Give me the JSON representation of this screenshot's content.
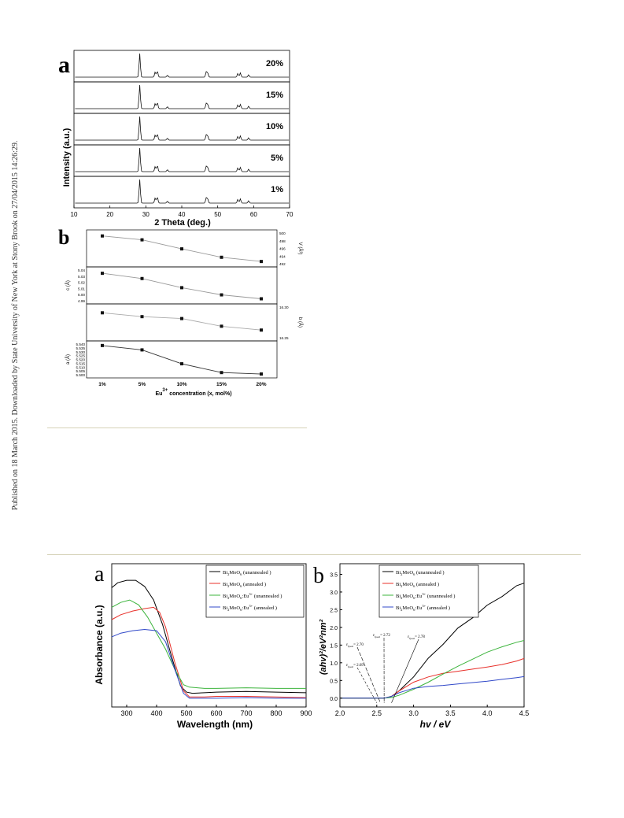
{
  "side_note": "Published on 18 March 2015. Downloaded by State University of New York at Stony Brook on 27/04/2015 14:26:29.",
  "fig_top": {
    "panel_a": {
      "letter": "a",
      "ylabel": "Intensity (a.u.)",
      "xlabel": "2 Theta (deg.)",
      "xticks": [
        "10",
        "20",
        "30",
        "40",
        "50",
        "60",
        "70"
      ],
      "xlim": [
        10,
        70
      ],
      "traces": [
        "20%",
        "15%",
        "10%",
        "5%",
        "1%"
      ],
      "peaks": [
        {
          "x": 28.3,
          "h": 1.0
        },
        {
          "x": 32.6,
          "h": 0.22
        },
        {
          "x": 33.2,
          "h": 0.26
        },
        {
          "x": 36.0,
          "h": 0.08
        },
        {
          "x": 46.8,
          "h": 0.22
        },
        {
          "x": 47.2,
          "h": 0.18
        },
        {
          "x": 55.6,
          "h": 0.16
        },
        {
          "x": 56.3,
          "h": 0.18
        },
        {
          "x": 58.6,
          "h": 0.1
        }
      ]
    },
    "panel_b": {
      "letter": "b",
      "categories": [
        "1%",
        "5%",
        "10%",
        "15%",
        "20%"
      ],
      "xlabel_pre": "Eu",
      "xlabel_sup": "3+",
      "xlabel_post": " concentration (x, mol%)",
      "subplots": [
        {
          "label": "V (Å³)",
          "side": "right",
          "ticks": [
            "500",
            "498",
            "496",
            "494",
            "492"
          ],
          "range": [
            491,
            500.5
          ],
          "values": [
            499.6,
            498.4,
            495.6,
            493.0,
            491.7
          ],
          "color": "#999999"
        },
        {
          "label": "c (Å)",
          "side": "left",
          "ticks": [
            "5.04",
            "5.03",
            "5.02",
            "5.01",
            "5.00",
            "4.99"
          ],
          "range": [
            4.993,
            5.04
          ],
          "values": [
            5.035,
            5.027,
            5.013,
            5.002,
            4.996
          ],
          "color": "#999999"
        },
        {
          "label": "b (Å)",
          "side": "right",
          "ticks": [
            "16.30",
            "16.25"
          ],
          "range": [
            16.24,
            16.32
          ],
          "values": [
            16.305,
            16.295,
            16.29,
            16.27,
            16.26
          ],
          "color": "#aaaaaa"
        },
        {
          "label": "a (Å)",
          "side": "left",
          "ticks": [
            "5.540",
            "5.535",
            "5.530",
            "5.525",
            "5.520",
            "5.515",
            "5.510",
            "5.505",
            "5.500"
          ],
          "range": [
            5.499,
            5.541
          ],
          "values": [
            5.539,
            5.533,
            5.514,
            5.502,
            5.5
          ],
          "color": "#333333"
        }
      ]
    }
  },
  "fig_bottom": {
    "panel_a": {
      "letter": "a",
      "ylabel": "Absorbance (a.u.)",
      "xlabel": "Wavelength (nm)",
      "xticks": [
        "300",
        "400",
        "500",
        "600",
        "700",
        "800",
        "900"
      ],
      "xlim": [
        250,
        900
      ],
      "legend": [
        {
          "pre": "Bi",
          "s1": "2",
          "mid": "MoO",
          "s2": "6",
          "post": "  (unannealed )",
          "color": "#000000"
        },
        {
          "pre": "Bi",
          "s1": "2",
          "mid": "MoO",
          "s2": "6",
          "post": "     (annealed )",
          "color": "#e8302a"
        },
        {
          "pre": "Bi",
          "s1": "2",
          "mid": "MoO",
          "s2": "6",
          "post": ":Eu",
          "s3": "3+",
          "post2": " (unannealed )",
          "color": "#3cb43c"
        },
        {
          "pre": "Bi",
          "s1": "2",
          "mid": "MoO",
          "s2": "6",
          "post": ":Eu",
          "s3": "3+",
          "post2": "    (annealed )",
          "color": "#3048c8"
        }
      ],
      "series": [
        {
          "x": [
            250,
            270,
            300,
            330,
            360,
            390,
            420,
            450,
            480,
            500,
            520,
            560,
            600,
            700,
            800,
            900
          ],
          "y": [
            0.92,
            0.96,
            0.98,
            0.98,
            0.93,
            0.82,
            0.62,
            0.36,
            0.12,
            0.07,
            0.06,
            0.065,
            0.07,
            0.075,
            0.07,
            0.065
          ]
        },
        {
          "x": [
            250,
            280,
            320,
            360,
            390,
            410,
            430,
            460,
            490,
            510,
            560,
            600,
            700,
            800,
            900
          ],
          "y": [
            0.66,
            0.7,
            0.73,
            0.75,
            0.76,
            0.72,
            0.6,
            0.32,
            0.08,
            0.03,
            0.03,
            0.035,
            0.035,
            0.03,
            0.025
          ]
        },
        {
          "x": [
            250,
            280,
            310,
            340,
            370,
            400,
            430,
            460,
            490,
            510,
            560,
            600,
            700,
            800,
            900
          ],
          "y": [
            0.76,
            0.8,
            0.82,
            0.78,
            0.68,
            0.55,
            0.42,
            0.26,
            0.13,
            0.11,
            0.1,
            0.1,
            0.105,
            0.1,
            0.1
          ]
        },
        {
          "x": [
            250,
            280,
            320,
            360,
            400,
            430,
            460,
            490,
            510,
            560,
            600,
            700,
            800,
            900
          ],
          "y": [
            0.52,
            0.55,
            0.57,
            0.58,
            0.57,
            0.48,
            0.26,
            0.06,
            0.02,
            0.02,
            0.02,
            0.025,
            0.02,
            0.02
          ]
        }
      ]
    },
    "panel_b": {
      "letter": "b",
      "ylabel": "(ahv)²/eV²nm²",
      "xlabel": "hv / eV",
      "xticks": [
        "2.0",
        "2.5",
        "3.0",
        "3.5",
        "4.0",
        "4.5"
      ],
      "yticks": [
        "0.0",
        "0.5",
        "1.0",
        "1.5",
        "2.0",
        "2.5",
        "3.0",
        "3.5"
      ],
      "xlim": [
        2.0,
        4.5
      ],
      "ylim": [
        -0.25,
        3.8
      ],
      "legend": [
        {
          "pre": "Bi",
          "s1": "2",
          "mid": "MoO",
          "s2": "6",
          "post": "  (unannealed )",
          "color": "#000000"
        },
        {
          "pre": "Bi",
          "s1": "2",
          "mid": "MoO",
          "s2": "6",
          "post": "     (annealed )",
          "color": "#e8302a"
        },
        {
          "pre": "Bi",
          "s1": "2",
          "mid": "MoO",
          "s2": "6",
          "post": ":Eu",
          "s3": "3+",
          "post2": " (unannealed )",
          "color": "#3cb43c"
        },
        {
          "pre": "Bi",
          "s1": "2",
          "mid": "MoO",
          "s2": "6",
          "post": ":Eu",
          "s3": "3+",
          "post2": "    (annealed )",
          "color": "#3048c8"
        }
      ],
      "annotations": [
        {
          "text": "= 2.70",
          "target": 2.55
        },
        {
          "text": "= 2.69",
          "target": 2.5
        },
        {
          "text": "= 2.72",
          "target": 2.6
        },
        {
          "text": "= 2.78",
          "target": 2.7
        }
      ],
      "series": [
        {
          "x": [
            2.0,
            2.4,
            2.6,
            2.7,
            2.8,
            3.0,
            3.2,
            3.4,
            3.6,
            3.8,
            4.0,
            4.2,
            4.4,
            4.5
          ],
          "y": [
            0.0,
            0.0,
            0.0,
            0.05,
            0.2,
            0.6,
            1.1,
            1.55,
            1.95,
            2.3,
            2.6,
            2.9,
            3.15,
            3.28
          ]
        },
        {
          "x": [
            2.0,
            2.4,
            2.6,
            2.7,
            2.8,
            3.0,
            3.2,
            3.4,
            3.6,
            3.8,
            4.0,
            4.2,
            4.4,
            4.5
          ],
          "y": [
            0.0,
            0.0,
            0.0,
            0.05,
            0.2,
            0.45,
            0.6,
            0.7,
            0.76,
            0.82,
            0.88,
            0.95,
            1.05,
            1.12
          ]
        },
        {
          "x": [
            2.0,
            2.4,
            2.6,
            2.7,
            2.8,
            3.0,
            3.2,
            3.4,
            3.6,
            3.8,
            4.0,
            4.2,
            4.4,
            4.5
          ],
          "y": [
            0.0,
            0.0,
            0.0,
            0.02,
            0.08,
            0.25,
            0.45,
            0.68,
            0.9,
            1.1,
            1.3,
            1.45,
            1.58,
            1.63
          ]
        },
        {
          "x": [
            2.0,
            2.4,
            2.6,
            2.7,
            2.8,
            3.0,
            3.2,
            3.4,
            3.6,
            3.8,
            4.0,
            4.2,
            4.4,
            4.5
          ],
          "y": [
            0.0,
            0.0,
            0.0,
            0.05,
            0.15,
            0.28,
            0.33,
            0.36,
            0.4,
            0.44,
            0.48,
            0.53,
            0.58,
            0.61
          ]
        }
      ]
    }
  }
}
